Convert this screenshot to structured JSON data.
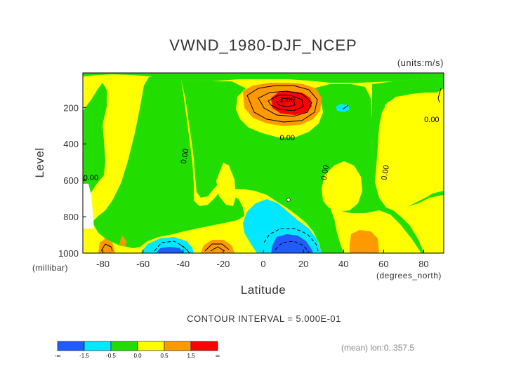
{
  "chart_data": {
    "type": "contour",
    "title": "VWND_1980-DJF_NCEP",
    "units": "(units:m/s)",
    "xlabel": "Latitude",
    "xunits": "(degrees_north)",
    "ylabel": "Level",
    "yunits": "(millibar)",
    "x_ticks": [
      -80,
      -60,
      -40,
      -20,
      0,
      20,
      40,
      60,
      80
    ],
    "y_ticks": [
      200,
      400,
      600,
      800,
      1000
    ],
    "xlim": [
      -90,
      90
    ],
    "ylim": [
      1000,
      10
    ],
    "contour_interval_text": "CONTOUR INTERVAL = 5.000E-01",
    "mean_note": "(mean) lon:0..357.5",
    "contour_labels": [
      {
        "text": "1.00",
        "x": 12,
        "y": 170
      },
      {
        "text": "0.00",
        "x": 12,
        "y": 380
      },
      {
        "text": "0.00",
        "x": -86,
        "y": 600
      },
      {
        "text": "0.00",
        "x": -38,
        "y": 470
      },
      {
        "text": "0.00",
        "x": 32,
        "y": 560
      },
      {
        "text": "0.00",
        "x": 62,
        "y": 560
      },
      {
        "text": "0.00",
        "x": 84,
        "y": 280
      }
    ],
    "colorbar": {
      "colors": [
        "#1f5bff",
        "#00e8ff",
        "#22dd00",
        "#ffff00",
        "#ff9900",
        "#ff0000"
      ],
      "labels": [
        "-∞",
        "-1.5",
        "-0.5",
        "0.0",
        "0.5",
        "1.5",
        "∞"
      ]
    }
  }
}
